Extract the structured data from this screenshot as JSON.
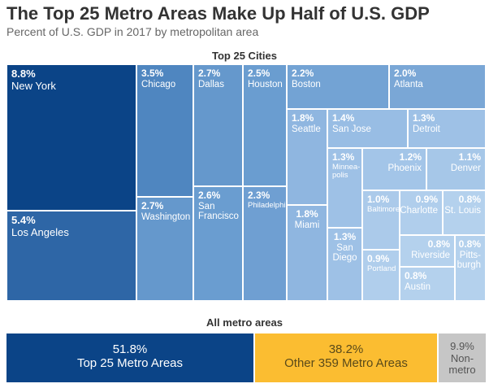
{
  "header": {
    "title": "The Top 25 Metro Areas Make Up Half of U.S. GDP",
    "subtitle": "Percent of U.S. GDP in 2017 by metropolitan area"
  },
  "chart_data": [
    {
      "type": "treemap",
      "title": "Top 25 Cities",
      "unit": "%",
      "items": [
        {
          "name": "New York",
          "value": 8.8
        },
        {
          "name": "Los Angeles",
          "value": 5.4
        },
        {
          "name": "Chicago",
          "value": 3.5
        },
        {
          "name": "Washington",
          "value": 2.7
        },
        {
          "name": "Dallas",
          "value": 2.7
        },
        {
          "name": "San\nFrancisco",
          "value": 2.6
        },
        {
          "name": "Houston",
          "value": 2.5
        },
        {
          "name": "Philadelphia",
          "value": 2.3
        },
        {
          "name": "Boston",
          "value": 2.2
        },
        {
          "name": "Atlanta",
          "value": 2.0
        },
        {
          "name": "Seattle",
          "value": 1.8
        },
        {
          "name": "Miami",
          "value": 1.8
        },
        {
          "name": "San Jose",
          "value": 1.4
        },
        {
          "name": "Detroit",
          "value": 1.3
        },
        {
          "name": "Minnea-\npolis",
          "value": 1.3
        },
        {
          "name": "San\nDiego",
          "value": 1.3
        },
        {
          "name": "Phoenix",
          "value": 1.2
        },
        {
          "name": "Denver",
          "value": 1.1
        },
        {
          "name": "Baltimore",
          "value": 1.0
        },
        {
          "name": "Charlotte",
          "value": 0.9
        },
        {
          "name": "Portland",
          "value": 0.9
        },
        {
          "name": "St. Louis",
          "value": 0.8
        },
        {
          "name": "Riverside",
          "value": 0.8
        },
        {
          "name": "Austin",
          "value": 0.8
        },
        {
          "name": "Pitts-\nburgh",
          "value": 0.8
        }
      ]
    },
    {
      "type": "stacked-bar",
      "title": "All metro areas",
      "unit": "%",
      "segments": [
        {
          "name": "Top 25 Metro Areas",
          "value": 51.8,
          "color": "#0b4487",
          "text_color": "#ffffff"
        },
        {
          "name": "Other 359 Metro Areas",
          "value": 38.2,
          "color": "#fbbd31",
          "text_color": "#5a4a1a"
        },
        {
          "name": "Non-\nmetro",
          "value": 9.9,
          "color": "#c6c6c6",
          "text_color": "#555555"
        }
      ]
    }
  ],
  "colors": {
    "New York": "#0b4487",
    "Los Angeles": "#2e66a6",
    "Chicago": "#4f86c0",
    "Washington": "#6598cc",
    "Dallas": "#6598cc",
    "San\nFrancisco": "#6a9dd0",
    "Houston": "#6a9dd0",
    "Philadelphia": "#6f9fd2",
    "Boston": "#73a3d4",
    "Atlanta": "#7aa7d6",
    "Seattle": "#8fb6e0",
    "Miami": "#8fb6e0",
    "San Jose": "#98bde4",
    "Detroit": "#9ec1e6",
    "Minnea-\npolis": "#9ec1e6",
    "San\nDiego": "#9ec1e6",
    "Phoenix": "#a3c5e8",
    "Denver": "#a6c7e8",
    "Baltimore": "#abcaea",
    "Charlotte": "#b0ceec",
    "Portland": "#b0ceec",
    "St. Louis": "#b4d1ed",
    "Riverside": "#b4d1ed",
    "Austin": "#b4d1ed",
    "Pitts-\nburgh": "#b4d1ed"
  }
}
